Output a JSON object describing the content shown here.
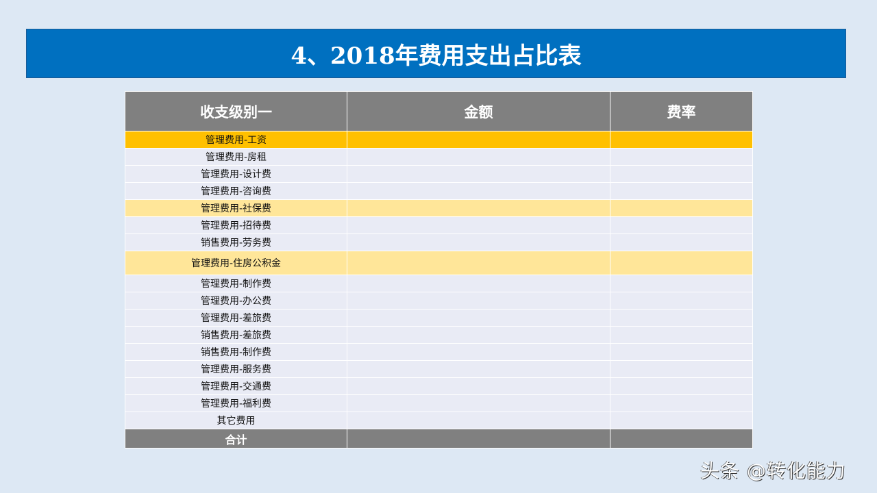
{
  "title": "4、2018年费用支出占比表",
  "headers": [
    "收支级别一",
    "金额",
    "费率"
  ],
  "rows": [
    {
      "label": "管理费用-工资",
      "style": "hl"
    },
    {
      "label": "管理费用-房租",
      "style": ""
    },
    {
      "label": "管理费用-设计费",
      "style": ""
    },
    {
      "label": "管理费用-咨询费",
      "style": ""
    },
    {
      "label": "管理费用-社保费",
      "style": "lt"
    },
    {
      "label": "管理费用-招待费",
      "style": ""
    },
    {
      "label": "销售费用-劳务费",
      "style": ""
    },
    {
      "label": "管理费用-住房公积金",
      "style": "lt tall"
    },
    {
      "label": "管理费用-制作费",
      "style": ""
    },
    {
      "label": "管理费用-办公费",
      "style": ""
    },
    {
      "label": "管理费用-差旅费",
      "style": ""
    },
    {
      "label": "销售费用-差旅费",
      "style": ""
    },
    {
      "label": "销售费用-制作费",
      "style": ""
    },
    {
      "label": "管理费用-服务费",
      "style": ""
    },
    {
      "label": "管理费用-交通费",
      "style": ""
    },
    {
      "label": "管理费用-福利费",
      "style": ""
    },
    {
      "label": "其它费用",
      "style": ""
    }
  ],
  "total_label": "合计",
  "watermark": "头条 @转化能力",
  "colors": {
    "title_bg": "#0070C0",
    "header_bg": "#808080",
    "highlight": "#FFC000",
    "light_highlight": "#FFE699",
    "row_bg": "#E9EBF5"
  }
}
